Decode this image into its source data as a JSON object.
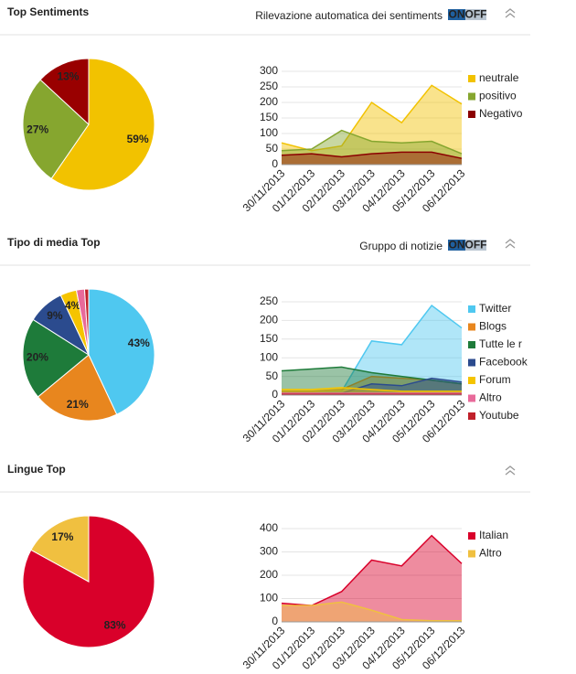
{
  "sections": [
    {
      "title": "Top Sentiments",
      "note": "Rilevazione automatica dei sentiments",
      "toggle": [
        "ON",
        "OFF"
      ]
    },
    {
      "title": "Tipo di media Top",
      "note": "Gruppo di notizie",
      "toggle": [
        "ON",
        "OFF"
      ]
    },
    {
      "title": "Lingue Top"
    }
  ],
  "chart_data": [
    {
      "type": "pie",
      "values": [
        59,
        27,
        13
      ],
      "value_labels": [
        "59%",
        "27%",
        "13%"
      ],
      "colors": [
        "#f2c200",
        "#86a62f",
        "#990000"
      ]
    },
    {
      "type": "area",
      "categories": [
        "30/11/2013",
        "01/12/2013",
        "02/12/2013",
        "03/12/2013",
        "04/12/2013",
        "05/12/2013",
        "06/12/2013"
      ],
      "series": [
        {
          "name": "neutrale",
          "color": "#f2c200",
          "values": [
            70,
            45,
            60,
            200,
            135,
            255,
            195
          ]
        },
        {
          "name": "positivo",
          "color": "#86a62f",
          "values": [
            45,
            50,
            110,
            75,
            70,
            75,
            35
          ]
        },
        {
          "name": "Negativo",
          "color": "#8b0000",
          "values": [
            30,
            35,
            25,
            35,
            40,
            40,
            20
          ]
        }
      ],
      "ylim": [
        0,
        300
      ],
      "yticks": [
        0,
        50,
        100,
        150,
        200,
        250,
        300
      ]
    },
    {
      "type": "pie",
      "values": [
        43,
        21,
        20,
        9,
        4,
        2,
        1
      ],
      "value_labels": [
        "43%",
        "21%",
        "20%",
        "9%",
        "4%",
        null,
        null
      ],
      "colors": [
        "#4fc8f0",
        "#e8861e",
        "#1e7b3a",
        "#2b4b8e",
        "#f5c400",
        "#e86a9a",
        "#c0202a"
      ]
    },
    {
      "type": "area",
      "categories": [
        "30/11/2013",
        "01/12/2013",
        "02/12/2013",
        "03/12/2013",
        "04/12/2013",
        "05/12/2013",
        "06/12/2013"
      ],
      "series": [
        {
          "name": "Twitter",
          "color": "#4fc8f0",
          "values": [
            5,
            5,
            10,
            145,
            135,
            240,
            180
          ]
        },
        {
          "name": "Blogs",
          "color": "#e8861e",
          "values": [
            10,
            10,
            15,
            50,
            45,
            40,
            30
          ]
        },
        {
          "name": "Tutte le r",
          "color": "#1e7b3a",
          "values": [
            65,
            70,
            75,
            60,
            50,
            40,
            30
          ]
        },
        {
          "name": "Facebook",
          "color": "#2b4b8e",
          "values": [
            5,
            5,
            5,
            30,
            25,
            45,
            35
          ]
        },
        {
          "name": "Forum",
          "color": "#f5c400",
          "values": [
            15,
            15,
            20,
            15,
            10,
            10,
            10
          ]
        },
        {
          "name": "Altro",
          "color": "#e86a9a",
          "values": [
            5,
            5,
            5,
            5,
            5,
            5,
            5
          ]
        },
        {
          "name": "Youtube",
          "color": "#c0202a",
          "values": [
            2,
            2,
            2,
            2,
            2,
            2,
            2
          ]
        }
      ],
      "ylim": [
        0,
        250
      ],
      "yticks": [
        0,
        50,
        100,
        150,
        200,
        250
      ]
    },
    {
      "type": "pie",
      "values": [
        83,
        17
      ],
      "value_labels": [
        "83%",
        "17%"
      ],
      "colors": [
        "#d9002a",
        "#f0c040"
      ]
    },
    {
      "type": "area",
      "categories": [
        "30/11/2013",
        "01/12/2013",
        "02/12/2013",
        "03/12/2013",
        "04/12/2013",
        "05/12/2013",
        "06/12/2013"
      ],
      "series": [
        {
          "name": "Italian",
          "color": "#d9002a",
          "values": [
            80,
            70,
            130,
            265,
            240,
            370,
            250
          ]
        },
        {
          "name": "Altro",
          "color": "#f0c040",
          "values": [
            70,
            70,
            85,
            50,
            10,
            5,
            5
          ]
        }
      ],
      "ylim": [
        0,
        400
      ],
      "yticks": [
        0,
        100,
        200,
        300,
        400
      ]
    }
  ]
}
